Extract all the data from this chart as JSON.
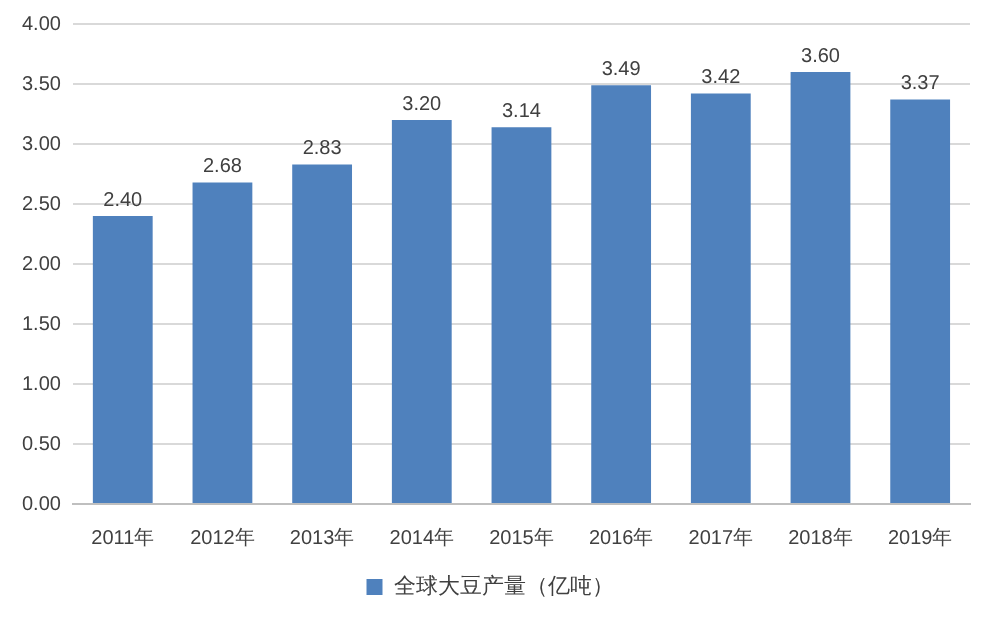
{
  "chart_data": {
    "type": "bar",
    "categories": [
      "2011年",
      "2012年",
      "2013年",
      "2014年",
      "2015年",
      "2016年",
      "2017年",
      "2018年",
      "2019年"
    ],
    "series": [
      {
        "name": "全球大豆产量（亿吨）",
        "color": "#4f81bd",
        "values": [
          2.4,
          2.68,
          2.83,
          3.2,
          3.14,
          3.49,
          3.42,
          3.6,
          3.37
        ],
        "value_labels": [
          "2.40",
          "2.68",
          "2.83",
          "3.20",
          "3.14",
          "3.49",
          "3.42",
          "3.60",
          "3.37"
        ]
      }
    ],
    "ylim": [
      0,
      4
    ],
    "yticks": [
      {
        "value": 0,
        "label": "0.00"
      },
      {
        "value": 0.5,
        "label": "0.50"
      },
      {
        "value": 1,
        "label": "1.00"
      },
      {
        "value": 1.5,
        "label": "1.50"
      },
      {
        "value": 2,
        "label": "2.00"
      },
      {
        "value": 2.5,
        "label": "2.50"
      },
      {
        "value": 3,
        "label": "3.00"
      },
      {
        "value": 3.5,
        "label": "3.50"
      },
      {
        "value": 4,
        "label": "4.00"
      }
    ],
    "grid": "y",
    "legend": "bottom"
  }
}
